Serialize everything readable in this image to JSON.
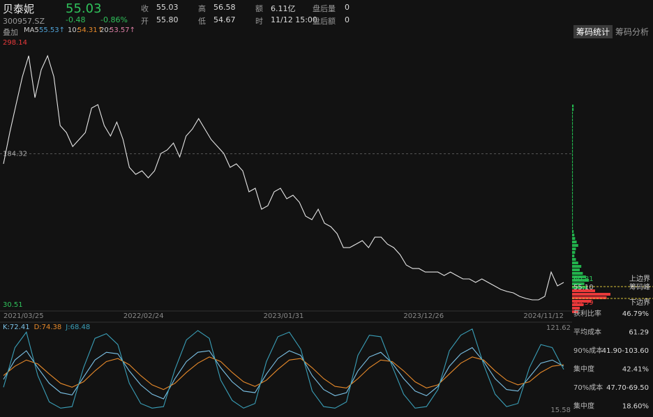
{
  "header": {
    "name": "贝泰妮",
    "price": "55.03",
    "code": "300957.SZ",
    "change": "-0.48",
    "change_pct": "-0.86%",
    "stats": [
      {
        "label": "收",
        "value": "55.03"
      },
      {
        "label": "开",
        "value": "55.80"
      },
      {
        "label": "高",
        "value": "56.58"
      },
      {
        "label": "低",
        "value": "54.67"
      },
      {
        "label": "额",
        "value": "6.11亿"
      },
      {
        "label": "时",
        "value": "11/12 15:00"
      },
      {
        "label": "盘后量",
        "value": "0"
      },
      {
        "label": "盘后额",
        "value": "0"
      }
    ]
  },
  "overlay": {
    "label": "叠加",
    "ma": [
      {
        "name": "MA5",
        "value": "55.53↑"
      },
      {
        "name": "10:",
        "value": "54.31↑"
      },
      {
        "name": "20:",
        "value": "53.57↑"
      }
    ]
  },
  "tabs": [
    "筹码统计",
    "筹码分析"
  ],
  "price_chart": {
    "type": "line",
    "color": "#e6e6e6",
    "ylim": [
      30.51,
      298.14
    ],
    "yticks": [
      298.14,
      184.32,
      30.51
    ],
    "x_labels": [
      "2021/03/25",
      "2022/02/24",
      "2023/01/31",
      "2023/12/26",
      "2024/11/12"
    ],
    "values": [
      174.1,
      205.6,
      233.7,
      261.7,
      282.7,
      240.7,
      268.7,
      282.7,
      261.7,
      212.7,
      205.6,
      191.6,
      198.6,
      205.6,
      230.2,
      233.7,
      212.7,
      202.1,
      216.1,
      198.6,
      170.6,
      163.6,
      167.1,
      160.1,
      167.1,
      184.6,
      188.1,
      195.1,
      181.1,
      202.1,
      209.1,
      219.6,
      209.1,
      198.6,
      191.6,
      184.6,
      170.6,
      174.1,
      167.1,
      146.1,
      149.6,
      128.6,
      132.1,
      146.1,
      149.6,
      139.1,
      142.6,
      135.6,
      121.6,
      118.1,
      128.6,
      114.5,
      111.0,
      104.0,
      90.0,
      90.0,
      93.5,
      97.0,
      90.0,
      100.5,
      100.5,
      93.5,
      90.0,
      83.0,
      72.5,
      69.0,
      69.0,
      65.5,
      65.5,
      65.5,
      62.0,
      65.5,
      62.0,
      58.5,
      58.5,
      55.0,
      58.5,
      55.0,
      51.5,
      48.0,
      45.9,
      44.5,
      41.0,
      38.9,
      37.5,
      37.5,
      41.0,
      65.5,
      51.5,
      55.0
    ]
  },
  "chips": {
    "profit_color": "#22b24c",
    "loss_color": "#e8393a",
    "above": [
      2,
      2,
      1,
      1,
      1,
      1,
      1,
      1,
      1,
      1,
      1,
      1,
      1,
      1,
      1,
      1,
      1,
      1,
      1,
      1,
      1,
      1,
      1,
      1,
      1,
      1,
      1,
      1,
      1,
      1,
      1,
      1,
      1,
      1,
      1,
      1,
      2,
      3,
      4,
      6,
      8,
      5,
      4,
      3,
      5,
      8,
      12,
      10,
      14,
      18,
      22,
      16,
      20
    ],
    "below": [
      30,
      50,
      45,
      25,
      15,
      10,
      8
    ],
    "levels": [
      {
        "value": "60.81",
        "label": "上边界"
      },
      {
        "value": "55.10",
        "label": "筹码峰"
      },
      {
        "value": "49.59",
        "label": "下边界"
      }
    ]
  },
  "chip_stats": [
    {
      "label": "获利比率",
      "value": "46.79%"
    },
    {
      "label": "平均成本",
      "value": "61.29"
    },
    {
      "label": "90%成本",
      "value": "41.90-103.60"
    },
    {
      "label": "集中度",
      "value": "42.41%"
    },
    {
      "label": "70%成本",
      "value": "47.70-69.50"
    },
    {
      "label": "集中度",
      "value": "18.60%"
    }
  ],
  "kdj": {
    "type": "line",
    "ylim": [
      15.58,
      121.62
    ],
    "yticks": [
      121.62,
      15.58
    ],
    "series": [
      {
        "name": "K:72.41",
        "color": "#7cc3e8",
        "values": [
          55,
          80,
          92,
          70,
          50,
          38,
          35,
          58,
          80,
          90,
          88,
          66,
          48,
          36,
          30,
          56,
          78,
          90,
          92,
          70,
          52,
          40,
          38,
          62,
          82,
          92,
          86,
          60,
          42,
          34,
          38,
          66,
          84,
          90,
          76,
          56,
          40,
          34,
          46,
          72,
          88,
          96,
          78,
          56,
          42,
          40,
          58,
          76,
          80,
          72
        ]
      },
      {
        "name": "D:74.38",
        "color": "#e88a2a",
        "values": [
          60,
          72,
          80,
          75,
          62,
          50,
          45,
          52,
          66,
          78,
          82,
          74,
          60,
          48,
          42,
          50,
          64,
          76,
          84,
          78,
          64,
          52,
          46,
          54,
          68,
          80,
          82,
          70,
          56,
          46,
          44,
          56,
          70,
          80,
          78,
          66,
          52,
          44,
          48,
          62,
          76,
          84,
          80,
          66,
          54,
          48,
          52,
          64,
          72,
          74
        ]
      },
      {
        "name": "J:68.48",
        "color": "#3a9fb8",
        "values": [
          45,
          96,
          116,
          60,
          26,
          18,
          20,
          70,
          108,
          114,
          100,
          50,
          24,
          18,
          20,
          68,
          106,
          118,
          108,
          54,
          28,
          18,
          24,
          78,
          110,
          116,
          94,
          40,
          20,
          18,
          26,
          86,
          112,
          110,
          72,
          36,
          18,
          20,
          42,
          92,
          112,
          120,
          74,
          36,
          20,
          24,
          70,
          100,
          96,
          68
        ]
      }
    ]
  }
}
